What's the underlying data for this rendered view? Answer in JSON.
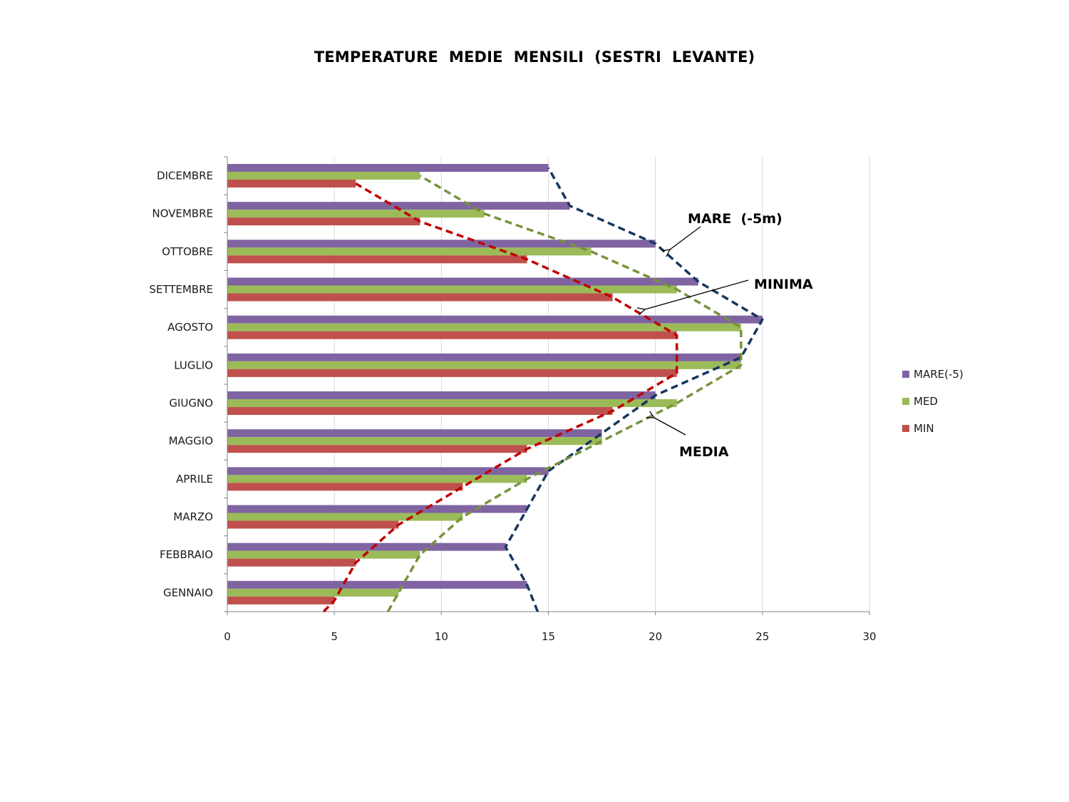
{
  "chart_data": {
    "type": "bar",
    "orientation": "horizontal",
    "title": "TEMPERATURE  MEDIE  MENSILI  (SESTRI  LEVANTE)",
    "categories": [
      "GENNAIO",
      "FEBBRAIO",
      "MARZO",
      "APRILE",
      "MAGGIO",
      "GIUGNO",
      "LUGLIO",
      "AGOSTO",
      "SETTEMBRE",
      "OTTOBRE",
      "NOVEMBRE",
      "DICEMBRE"
    ],
    "series": [
      {
        "name": "MARE(-5)",
        "color": "#8064a2",
        "values": [
          14,
          13,
          14,
          15,
          17.5,
          20,
          24,
          25,
          22,
          20,
          16,
          15
        ]
      },
      {
        "name": "MED",
        "color": "#9bbb59",
        "values": [
          8,
          9,
          11,
          14,
          17.5,
          21,
          24,
          24,
          21,
          17,
          12,
          9
        ]
      },
      {
        "name": "MIN",
        "color": "#c0504d",
        "values": [
          5,
          6,
          8,
          11,
          14,
          18,
          21,
          21,
          18,
          14,
          9,
          6
        ]
      }
    ],
    "xlim": [
      0,
      30
    ],
    "xticks": [
      0,
      5,
      10,
      15,
      20,
      25,
      30
    ],
    "grid": true,
    "legend_position": "right",
    "trend_lines": [
      {
        "series": "MARE(-5)",
        "color": "#17365d",
        "style": "dashed",
        "label": "MARE  (-5m)"
      },
      {
        "series": "MIN",
        "color": "#c00000",
        "style": "dashed",
        "label": "MINIMA"
      },
      {
        "series": "MED",
        "color": "#77933c",
        "style": "dashed",
        "label": "MEDIA"
      }
    ]
  }
}
